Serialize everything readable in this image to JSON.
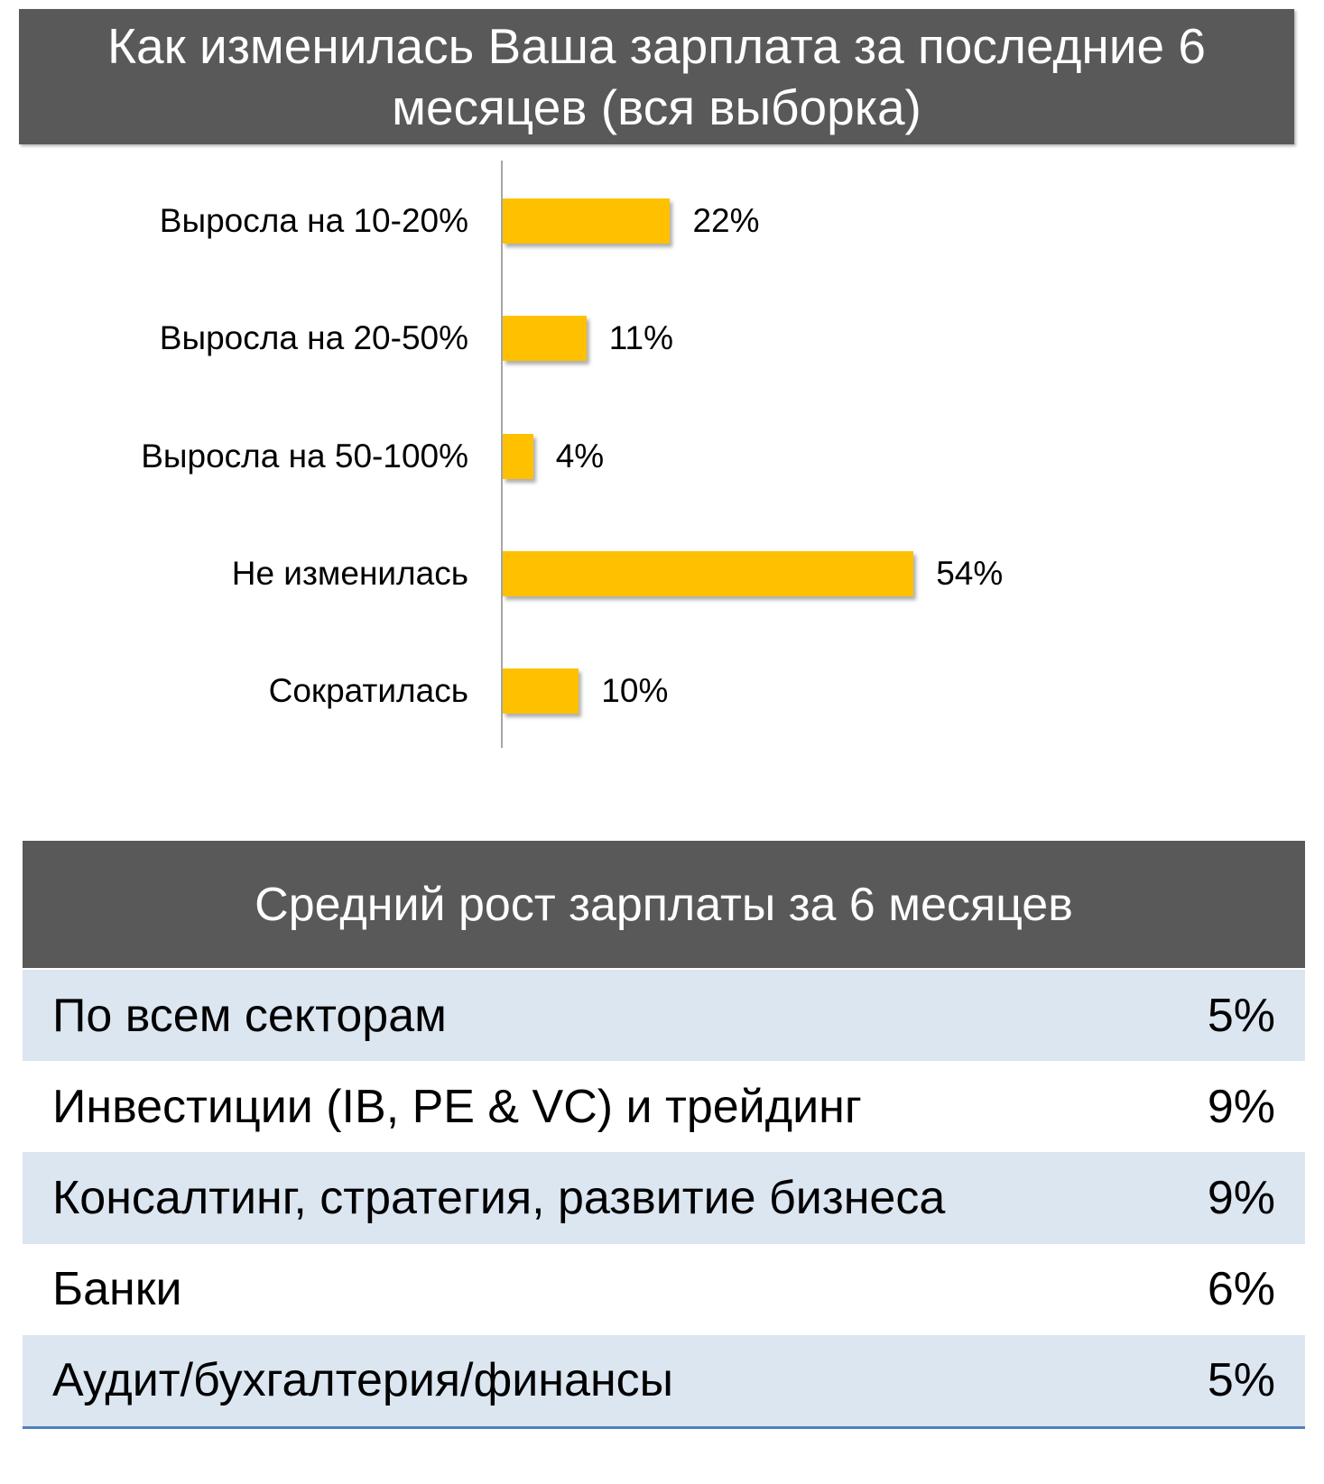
{
  "chart_data": {
    "type": "bar",
    "orientation": "horizontal",
    "title": "Как изменилась Ваша зарплата за последние 6 месяцев (вся выборка)",
    "categories": [
      "Выросла на 10-20%",
      "Выросла на 20-50%",
      "Выросла на 50-100%",
      "Не изменилась",
      "Сократилась"
    ],
    "values": [
      22,
      11,
      4,
      54,
      10
    ],
    "value_labels": [
      "22%",
      "11%",
      "4%",
      "54%",
      "10%"
    ],
    "unit": "%",
    "xlim": [
      0,
      100
    ],
    "grid": false,
    "legend": "none"
  },
  "table": {
    "title": "Средний рост зарплаты за 6 месяцев",
    "rows": [
      {
        "label": "По всем секторам",
        "value": "5%"
      },
      {
        "label": "Инвестиции (IB, PE & VC) и трейдинг",
        "value": "9%"
      },
      {
        "label": "Консалтинг, стратегия, развитие бизнеса",
        "value": "9%"
      },
      {
        "label": "Банки",
        "value": "6%"
      },
      {
        "label": "Аудит/бухгалтерия/финансы",
        "value": "5%"
      }
    ]
  },
  "colors": {
    "header_bg": "#595959",
    "bar": "#FFC000",
    "row_alt": "#DCE6F1",
    "rule": "#4F81BD",
    "axis": "#A6A6A6"
  }
}
